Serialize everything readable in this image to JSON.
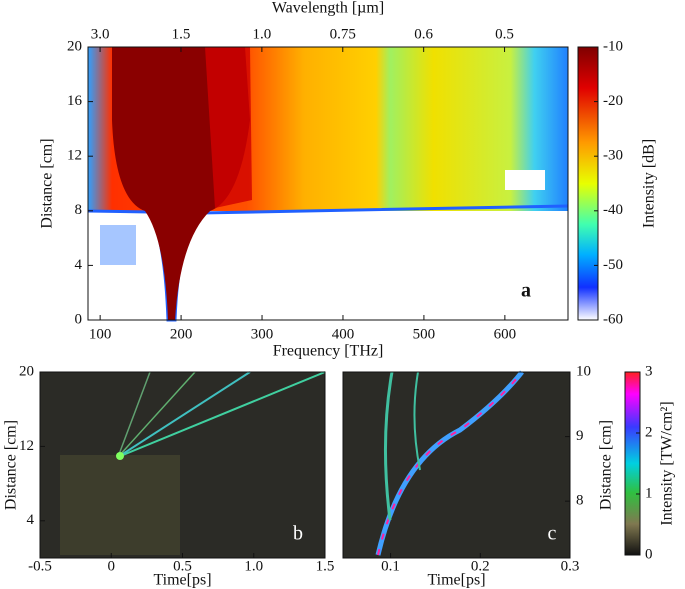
{
  "chart_data": [
    {
      "type": "heatmap",
      "x_label": "Frequency [THz]",
      "x2_label": "Wavelength [µm]",
      "y_label": "Distance [cm]",
      "xlim": [
        85,
        678
      ],
      "xticks": [
        100,
        200,
        300,
        400,
        500,
        600
      ],
      "x2lim": [
        3.527,
        0.4422
      ],
      "x2scale": "reciprocal",
      "x2ticks": [
        {
          "value": 3,
          "label": "3.0"
        },
        1.5,
        {
          "value": 1,
          "label": "1.0"
        },
        0.75,
        0.6,
        0.5
      ],
      "ylim": [
        0,
        20
      ],
      "yticks": [
        0,
        4,
        8,
        12,
        16,
        20
      ],
      "y_axis_side": "left",
      "colorbar": {
        "label": "Intensity [dB]",
        "clim": [
          -60,
          -10
        ],
        "ticks": [
          -10,
          -20,
          -30,
          -40,
          -50,
          -60
        ]
      },
      "annotation": "a"
    },
    {
      "type": "heatmap",
      "x_label": "Time[ps]",
      "y_label": "Distance [cm]",
      "xlim": [
        -0.5,
        1.5
      ],
      "xticks": [
        -0.5,
        0,
        0.5,
        {
          "value": 1,
          "label": "1.0"
        },
        1.5
      ],
      "ylim": [
        0,
        20
      ],
      "yticks": [
        4,
        12,
        20
      ],
      "y_axis_side": "left",
      "annotation": "b"
    },
    {
      "type": "heatmap",
      "x_label": "Time[ps]",
      "y_label": "Distance [cm]",
      "xlim": [
        0.047,
        0.3
      ],
      "xticks": [
        0.1,
        0.2,
        0.3
      ],
      "ylim": [
        7.12,
        10
      ],
      "yticks": [
        8,
        9,
        10
      ],
      "y_axis_side": "right",
      "colorbar": {
        "label": "Intensity [TW/cm²]",
        "clim": [
          0,
          3
        ],
        "ticks": [
          0,
          1,
          2,
          3
        ]
      },
      "annotation": "c"
    }
  ]
}
